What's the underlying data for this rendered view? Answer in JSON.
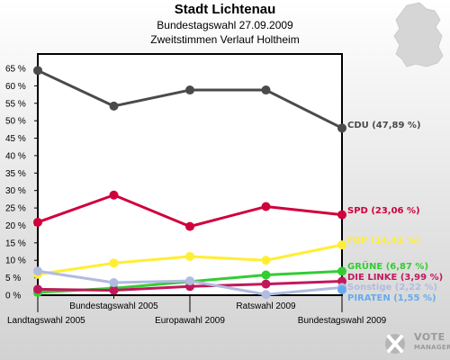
{
  "header": {
    "title": "Stadt Lichtenau",
    "subtitle": "Bundestagswahl 27.09.2009",
    "subtitle2": "Zweitstimmen Verlauf Holtheim"
  },
  "logo": {
    "line1": "VOTE",
    "line2": "MANAGER"
  },
  "chart_data": {
    "type": "line",
    "categories": [
      "Landtagswahl 2005",
      "Bundestagswahl 2005",
      "Europawahl 2009",
      "Ratswahl 2009",
      "Bundestagswahl 2009"
    ],
    "y_ticks": [
      "0 %",
      "5 %",
      "10 %",
      "15 %",
      "20 %",
      "25 %",
      "30 %",
      "35 %",
      "40 %",
      "45 %",
      "50 %",
      "55 %",
      "60 %",
      "65 %"
    ],
    "ylim": [
      0,
      65
    ],
    "grid": false,
    "legend": "right",
    "series": [
      {
        "name": "CDU",
        "label": "CDU (47,89 %)",
        "color": "#4a4a4a",
        "values": [
          64.4,
          54.2,
          58.8,
          58.8,
          47.89
        ]
      },
      {
        "name": "SPD",
        "label": "SPD (23,06 %)",
        "color": "#d0003c",
        "values": [
          20.9,
          28.7,
          19.7,
          25.4,
          23.06
        ]
      },
      {
        "name": "FDP",
        "label": "FDP (14,41 %)",
        "color": "#ffee33",
        "values": [
          6.0,
          9.2,
          11.1,
          10.0,
          14.41
        ]
      },
      {
        "name": "GRÜNE",
        "label": "GRÜNE (6,87 %)",
        "color": "#33cc33",
        "values": [
          0.8,
          2.0,
          3.9,
          5.8,
          6.87
        ]
      },
      {
        "name": "DIE LINKE",
        "label": "DIE LINKE (3,99 %)",
        "color": "#c2185b",
        "values": [
          1.7,
          1.4,
          2.5,
          3.2,
          3.99
        ]
      },
      {
        "name": "Sonstige",
        "label": "Sonstige (2,22 %)",
        "color": "#b0bce0",
        "values": [
          6.9,
          3.6,
          4.1,
          0.2,
          2.22
        ]
      },
      {
        "name": "PIRATEN",
        "label": "PIRATEN (1,55 %)",
        "color": "#66aaee",
        "values": [
          null,
          null,
          null,
          null,
          1.55
        ]
      }
    ]
  }
}
